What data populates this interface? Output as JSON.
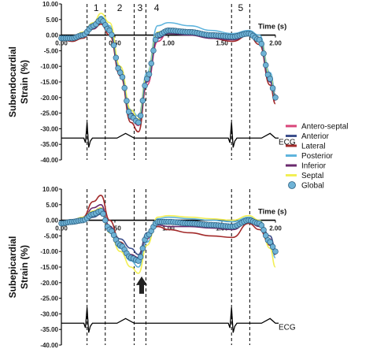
{
  "chart_data": [
    {
      "type": "line",
      "panel": "top",
      "ylabel": "Subendocardial Strain (%)",
      "xlabel": "Time (s)",
      "xlim": [
        0.0,
        2.0
      ],
      "ylim": [
        -40,
        10
      ],
      "x_ticks": [
        "0.00",
        "0.50",
        "1.00",
        "1.50",
        "2.00"
      ],
      "y_ticks": [
        "10.00",
        "5.00",
        "0.00",
        "-5.00",
        "-10.00",
        "-15.00",
        "-20.00",
        "-25.00",
        "-30.00",
        "-35.00",
        "-40.00"
      ],
      "phase_labels": [
        "1",
        "2",
        "3",
        "4",
        "5"
      ],
      "phase_boundaries": [
        0.24,
        0.41,
        0.68,
        0.79,
        1.59,
        1.76
      ],
      "ecg_label": "ECG",
      "ecg_baseline": -33,
      "grid": false,
      "series": [
        {
          "name": "Antero-septal",
          "x": [
            0.0,
            0.1,
            0.2,
            0.3,
            0.37,
            0.45,
            0.55,
            0.65,
            0.72,
            0.8,
            0.9,
            1.0,
            1.2,
            1.4,
            1.6,
            1.75,
            1.85,
            1.95,
            2.0
          ],
          "y": [
            -1,
            -1.5,
            -0.5,
            2.5,
            4.5,
            1,
            -13,
            -27,
            -29,
            -16,
            -2,
            1,
            0.5,
            -0.5,
            -1,
            0.5,
            -2,
            -15,
            -21
          ]
        },
        {
          "name": "Anterior",
          "x": [
            0.0,
            0.1,
            0.2,
            0.3,
            0.37,
            0.45,
            0.55,
            0.65,
            0.72,
            0.8,
            0.9,
            1.0,
            1.2,
            1.4,
            1.6,
            1.75,
            1.85,
            1.95,
            2.0
          ],
          "y": [
            -0.5,
            -1,
            0,
            3,
            5,
            2,
            -12,
            -25,
            -27,
            -14,
            -1,
            1.5,
            1,
            0,
            -0.5,
            1,
            -1.5,
            -14,
            -19
          ]
        },
        {
          "name": "Lateral",
          "x": [
            0.0,
            0.1,
            0.2,
            0.3,
            0.37,
            0.45,
            0.55,
            0.65,
            0.72,
            0.8,
            0.9,
            1.0,
            1.2,
            1.4,
            1.6,
            1.75,
            1.85,
            1.95,
            2.0
          ],
          "y": [
            -1.5,
            -2,
            -1,
            2,
            3.5,
            0,
            -13,
            -28,
            -31,
            -15,
            0,
            2,
            1,
            -1,
            -2,
            0,
            -3,
            -16,
            -22
          ]
        },
        {
          "name": "Posterior",
          "x": [
            0.0,
            0.1,
            0.2,
            0.3,
            0.37,
            0.45,
            0.55,
            0.65,
            0.72,
            0.8,
            0.9,
            1.0,
            1.2,
            1.4,
            1.6,
            1.75,
            1.85,
            1.95,
            2.0
          ],
          "y": [
            -0.5,
            -0.5,
            0.5,
            3.5,
            6,
            3,
            -11,
            -24,
            -26,
            -12,
            3,
            4,
            3,
            1.5,
            0.5,
            1.5,
            0,
            -12,
            -18
          ]
        },
        {
          "name": "Inferior",
          "x": [
            0.0,
            0.1,
            0.2,
            0.3,
            0.37,
            0.45,
            0.55,
            0.65,
            0.72,
            0.8,
            0.9,
            1.0,
            1.2,
            1.4,
            1.6,
            1.75,
            1.85,
            1.95,
            2.0
          ],
          "y": [
            -1,
            -1.5,
            -0.5,
            2,
            4,
            1,
            -12,
            -26,
            -28,
            -15,
            -1,
            0.5,
            0,
            -1,
            -1.5,
            0,
            -2,
            -15,
            -20
          ]
        },
        {
          "name": "Septal",
          "x": [
            0.0,
            0.1,
            0.2,
            0.3,
            0.37,
            0.45,
            0.55,
            0.65,
            0.72,
            0.8,
            0.9,
            1.0,
            1.2,
            1.4,
            1.6,
            1.75,
            1.85,
            1.95,
            2.0
          ],
          "y": [
            -0.5,
            -1,
            1,
            4,
            7,
            4,
            -10,
            -24,
            -27,
            -13,
            1,
            2,
            1.5,
            0.5,
            0,
            1,
            -1,
            -13,
            -20
          ]
        },
        {
          "name": "Global",
          "x": [
            0.0,
            0.1,
            0.2,
            0.3,
            0.37,
            0.45,
            0.55,
            0.65,
            0.72,
            0.8,
            0.9,
            1.0,
            1.2,
            1.4,
            1.6,
            1.75,
            1.85,
            1.95,
            2.0
          ],
          "y": [
            -1,
            -1,
            0,
            3,
            5,
            1.5,
            -12,
            -26,
            -28,
            -14,
            0,
            1.5,
            1,
            0,
            -0.5,
            0.5,
            -1.5,
            -14,
            -20
          ]
        }
      ]
    },
    {
      "type": "line",
      "panel": "bottom",
      "ylabel": "Subepicardial Strain (%)",
      "xlabel": "Time (s)",
      "xlim": [
        0.0,
        2.0
      ],
      "ylim": [
        -40,
        10
      ],
      "x_ticks": [
        "0.00",
        "0.50",
        "1.00",
        "1.50",
        "2.00"
      ],
      "y_ticks": [
        "10.00",
        "5.00",
        "0.00",
        "-5.00",
        "-10.00",
        "-15.00",
        "-20.00",
        "-25.00",
        "-30.00",
        "-35.00",
        "-40.00"
      ],
      "phase_boundaries": [
        0.24,
        0.41,
        0.68,
        0.79,
        1.59,
        1.76
      ],
      "arrow_at": {
        "x": 0.75,
        "y": -18
      },
      "ecg_label": "ECG",
      "ecg_baseline": -33,
      "grid": false,
      "series": [
        {
          "name": "Antero-septal",
          "x": [
            0.0,
            0.1,
            0.2,
            0.3,
            0.37,
            0.45,
            0.55,
            0.65,
            0.72,
            0.8,
            0.9,
            1.0,
            1.2,
            1.4,
            1.6,
            1.75,
            1.85,
            1.95,
            2.0
          ],
          "y": [
            -1,
            -1,
            0,
            3,
            4,
            -3,
            -8,
            -12,
            -12,
            -6,
            -1,
            -1,
            -1.5,
            -2,
            -2.5,
            0,
            -1,
            -6,
            -10
          ]
        },
        {
          "name": "Anterior",
          "x": [
            0.0,
            0.1,
            0.2,
            0.3,
            0.37,
            0.45,
            0.55,
            0.65,
            0.72,
            0.8,
            0.9,
            1.0,
            1.2,
            1.4,
            1.6,
            1.75,
            1.85,
            1.95,
            2.0
          ],
          "y": [
            -0.5,
            -1,
            -0.5,
            1,
            2,
            -2,
            -6,
            -9,
            -11,
            -4,
            0,
            0,
            -0.5,
            -1,
            -1.5,
            0.5,
            -1,
            -5,
            -9
          ]
        },
        {
          "name": "Lateral",
          "x": [
            0.0,
            0.1,
            0.2,
            0.3,
            0.37,
            0.45,
            0.55,
            0.65,
            0.72,
            0.8,
            0.9,
            1.0,
            1.2,
            1.4,
            1.6,
            1.75,
            1.85,
            1.95,
            2.0
          ],
          "y": [
            -1,
            -0.5,
            1,
            6,
            8,
            0,
            -7,
            -11,
            -12,
            -5,
            -2,
            -3,
            -4,
            -5,
            -5.5,
            -1,
            -3,
            -8,
            -11
          ]
        },
        {
          "name": "Posterior",
          "x": [
            0.0,
            0.1,
            0.2,
            0.3,
            0.37,
            0.45,
            0.55,
            0.65,
            0.72,
            0.8,
            0.9,
            1.0,
            1.2,
            1.4,
            1.6,
            1.75,
            1.85,
            1.95,
            2.0
          ],
          "y": [
            -0.5,
            -0.5,
            0,
            2,
            3,
            -3,
            -9,
            -13,
            -15,
            -7,
            0.5,
            1,
            0.5,
            0,
            -0.5,
            1,
            0,
            -7,
            -12
          ]
        },
        {
          "name": "Inferior",
          "x": [
            0.0,
            0.1,
            0.2,
            0.3,
            0.37,
            0.45,
            0.55,
            0.65,
            0.72,
            0.8,
            0.9,
            1.0,
            1.2,
            1.4,
            1.6,
            1.75,
            1.85,
            1.95,
            2.0
          ],
          "y": [
            -1,
            -1,
            0.5,
            4,
            5,
            -2,
            -8,
            -11,
            -12,
            -5,
            -1.5,
            -2,
            -2,
            -2.5,
            -3,
            -0.5,
            -2,
            -7,
            -10
          ]
        },
        {
          "name": "Septal",
          "x": [
            0.0,
            0.1,
            0.2,
            0.3,
            0.37,
            0.45,
            0.55,
            0.65,
            0.72,
            0.8,
            0.9,
            1.0,
            1.2,
            1.4,
            1.6,
            1.75,
            1.85,
            1.95,
            2.0
          ],
          "y": [
            -0.5,
            0,
            1,
            3,
            4,
            -4,
            -10,
            -15,
            -17,
            -8,
            1,
            1.5,
            1,
            0.5,
            0,
            1.5,
            0,
            -9,
            -15
          ]
        },
        {
          "name": "Global",
          "x": [
            0.0,
            0.1,
            0.2,
            0.3,
            0.37,
            0.45,
            0.55,
            0.65,
            0.72,
            0.8,
            0.9,
            1.0,
            1.2,
            1.4,
            1.6,
            1.75,
            1.85,
            1.95,
            2.0
          ],
          "y": [
            -1,
            -0.5,
            0,
            2,
            3,
            -3,
            -8,
            -12,
            -13,
            -5,
            -0.5,
            -0.5,
            -1,
            -1.5,
            -2,
            0,
            -1,
            -7,
            -10
          ]
        }
      ]
    }
  ],
  "legend": {
    "placement": "right",
    "items": [
      {
        "label": "Antero-septal",
        "color": "#d9467a",
        "marker": "line"
      },
      {
        "label": "Anterior",
        "color": "#3d4f8c",
        "marker": "line"
      },
      {
        "label": "Lateral",
        "color": "#a22a2a",
        "marker": "line"
      },
      {
        "label": "Posterior",
        "color": "#5fb4dd",
        "marker": "line"
      },
      {
        "label": "Inferior",
        "color": "#6a2a6e",
        "marker": "line"
      },
      {
        "label": "Septal",
        "color": "#f2ef55",
        "marker": "line"
      },
      {
        "label": "Global",
        "color": "#6fb3d6",
        "marker": "circle"
      }
    ]
  }
}
